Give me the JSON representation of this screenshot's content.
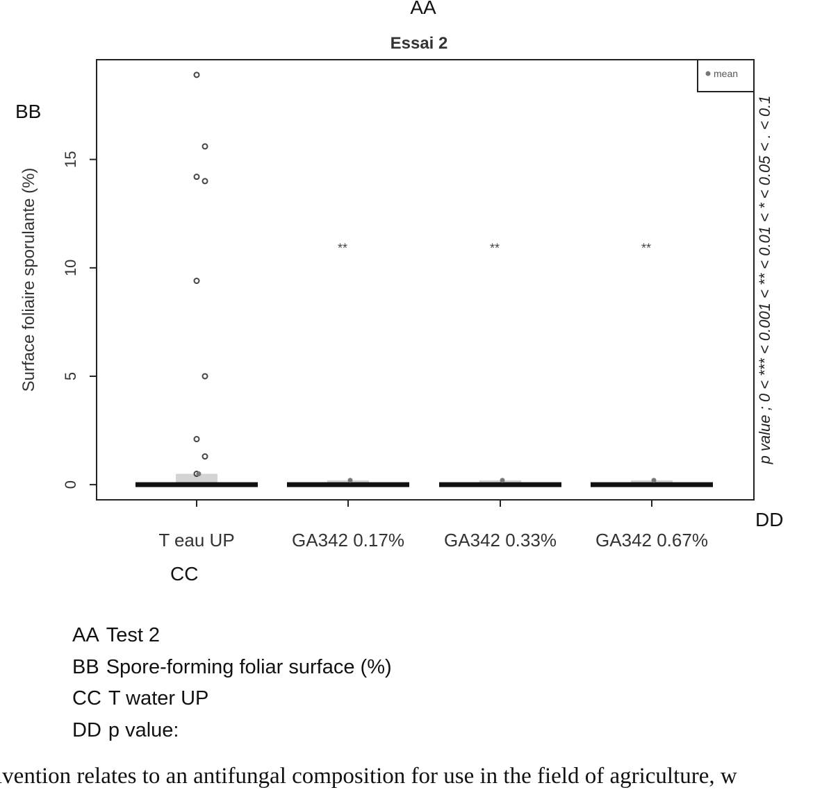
{
  "callouts": {
    "title_tag": "AA",
    "ylabel_tag": "BB",
    "category_tag": "CC",
    "pvalue_tag": "DD"
  },
  "translations": [
    {
      "code": "AA",
      "text": "Test 2"
    },
    {
      "code": "BB",
      "text": "Spore-forming foliar surface (%)"
    },
    {
      "code": "CC",
      "text": "T water UP"
    },
    {
      "code": "DD",
      "text": "p value:"
    }
  ],
  "body_text": "ıvention relates to an antifungal composition for use in the field of agriculture, w",
  "chart_data": {
    "type": "box",
    "title": "Essai 2",
    "ylabel": "Surface foliaire sporulante (%)",
    "right_label": "p value ; 0 < *** < 0.001 < ** < 0.01 < * < 0.05 < . < 0.1",
    "ylim": [
      -0.7,
      19.6
    ],
    "yticks": [
      0,
      5,
      10,
      15
    ],
    "legend": {
      "entries": [
        "mean"
      ],
      "position": "top-right"
    },
    "categories": [
      "T eau UP",
      "GA342 0.17%",
      "GA342 0.33%",
      "GA342 0.67%"
    ],
    "medians": [
      0,
      0,
      0,
      0
    ],
    "means": [
      0.5,
      0.2,
      0.2,
      0.2
    ],
    "significance": [
      "",
      "**",
      "**",
      "**"
    ],
    "significance_y": 10.9,
    "outliers": [
      {
        "x": 0,
        "values": [
          18.9,
          15.6,
          14.2,
          14.0,
          9.4,
          5.0,
          2.1,
          1.3,
          0.5
        ]
      },
      {
        "x": 1,
        "values": []
      },
      {
        "x": 2,
        "values": []
      },
      {
        "x": 3,
        "values": []
      }
    ]
  }
}
